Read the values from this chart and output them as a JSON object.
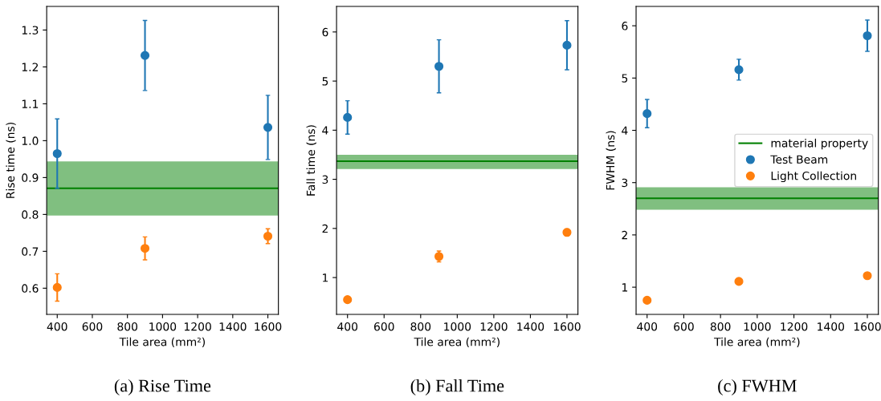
{
  "chart_data": [
    {
      "type": "scatter",
      "xlabel": "Tile area (mm²)",
      "ylabel": "Rise time (ns)",
      "annotations": [
        "(a) Rise Time"
      ],
      "x": [
        400,
        900,
        1600
      ],
      "xlim": [
        340,
        1660
      ],
      "xticks": [
        400,
        600,
        800,
        1000,
        1200,
        1400,
        1600
      ],
      "ylim": [
        0.529,
        1.364
      ],
      "yticks": [
        0.6,
        0.7,
        0.8,
        0.9,
        {
          "value": 1,
          "label": "1.0"
        },
        1.1,
        1.2,
        1.3
      ],
      "marker": "circle",
      "grid": false,
      "legend": false,
      "series": [
        {
          "color": "#1f77b4",
          "values": [
            0.965,
            1.231,
            1.036
          ],
          "errors": [
            0.094,
            0.095,
            0.087
          ]
        },
        {
          "color": "#ff7f0e",
          "values": [
            0.602,
            0.708,
            0.741
          ],
          "errors": [
            0.037,
            0.031,
            0.02
          ]
        }
      ],
      "ref_lines": [
        {
          "axis": "y",
          "value": 0.871,
          "color": "#008000"
        }
      ],
      "bands": [
        {
          "axis": "y",
          "from": 0.797,
          "to": 0.944,
          "color": "#80bf80"
        }
      ]
    },
    {
      "type": "scatter",
      "xlabel": "Tile area (mm²)",
      "ylabel": "Fall time (ns)",
      "annotations": [
        "(b) Fall Time"
      ],
      "x": [
        400,
        900,
        1600
      ],
      "xlim": [
        340,
        1660
      ],
      "xticks": [
        400,
        600,
        800,
        1000,
        1200,
        1400,
        1600
      ],
      "ylim": [
        0.25,
        6.52
      ],
      "yticks": [
        1,
        2,
        3,
        4,
        5,
        6
      ],
      "marker": "circle",
      "grid": false,
      "legend": false,
      "series": [
        {
          "color": "#1f77b4",
          "values": [
            4.26,
            5.3,
            5.73
          ],
          "errors": [
            0.34,
            0.54,
            0.5
          ]
        },
        {
          "color": "#ff7f0e",
          "values": [
            0.55,
            1.43,
            1.92
          ],
          "errors": [
            0.02,
            0.11,
            0.07
          ]
        }
      ],
      "ref_lines": [
        {
          "axis": "y",
          "value": 3.37,
          "color": "#008000"
        }
      ],
      "bands": [
        {
          "axis": "y",
          "from": 3.21,
          "to": 3.5,
          "color": "#80bf80"
        }
      ]
    },
    {
      "type": "scatter",
      "xlabel": "Tile area (mm²)",
      "ylabel": "FWHM (ns)",
      "annotations": [
        "(c) FWHM"
      ],
      "x": [
        400,
        900,
        1600
      ],
      "xlim": [
        340,
        1660
      ],
      "xticks": [
        400,
        600,
        800,
        1000,
        1200,
        1400,
        1600
      ],
      "ylim": [
        0.48,
        6.37
      ],
      "yticks": [
        1,
        2,
        3,
        4,
        5,
        6
      ],
      "marker": "circle",
      "grid": false,
      "legend": "center right",
      "series": [
        {
          "name": "Test Beam",
          "color": "#1f77b4",
          "values": [
            4.32,
            5.16,
            5.81
          ],
          "errors": [
            0.27,
            0.2,
            0.3
          ]
        },
        {
          "name": "Light Collection",
          "color": "#ff7f0e",
          "values": [
            0.75,
            1.11,
            1.22
          ],
          "errors": [
            0.02,
            0.02,
            0.02
          ]
        }
      ],
      "ref_lines": [
        {
          "axis": "y",
          "value": 2.7,
          "color": "#008000",
          "label": "material property"
        }
      ],
      "bands": [
        {
          "axis": "y",
          "from": 2.48,
          "to": 2.91,
          "color": "#80bf80"
        }
      ]
    }
  ]
}
